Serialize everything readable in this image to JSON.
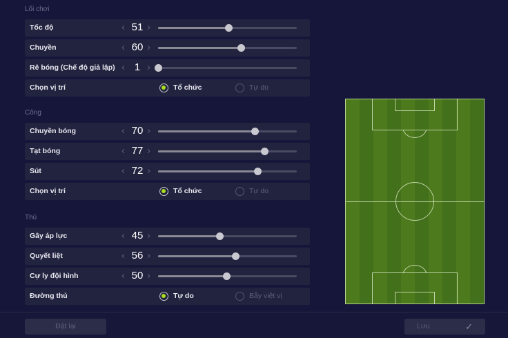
{
  "sections": [
    {
      "title": "Lối chơi",
      "sliders": [
        {
          "label": "Tốc độ",
          "value": 51
        },
        {
          "label": "Chuyền",
          "value": 60
        },
        {
          "label": "Rê bóng (Chế độ giả lập)",
          "value": 1
        }
      ],
      "radio": {
        "label": "Chọn vị trí",
        "options": [
          "Tổ chức",
          "Tự do"
        ],
        "selected": 0
      }
    },
    {
      "title": "Công",
      "sliders": [
        {
          "label": "Chuyền bóng",
          "value": 70
        },
        {
          "label": "Tạt bóng",
          "value": 77
        },
        {
          "label": "Sút",
          "value": 72
        }
      ],
      "radio": {
        "label": "Chọn vị trí",
        "options": [
          "Tổ chức",
          "Tự do"
        ],
        "selected": 0
      }
    },
    {
      "title": "Thủ",
      "sliders": [
        {
          "label": "Gây áp lực",
          "value": 45
        },
        {
          "label": "Quyết liệt",
          "value": 56
        },
        {
          "label": "Cự ly đội hình",
          "value": 50
        }
      ],
      "radio": {
        "label": "Đường thủ",
        "options": [
          "Tự do",
          "Bẫy việt vị"
        ],
        "selected": 0
      }
    }
  ],
  "slider_range": [
    1,
    100
  ],
  "footer": {
    "reset": "Đặt lại",
    "save": "Lưu"
  },
  "colors": {
    "accent": "#a8e01a",
    "pitch": "#4c7a1c",
    "background": "#16163a"
  }
}
